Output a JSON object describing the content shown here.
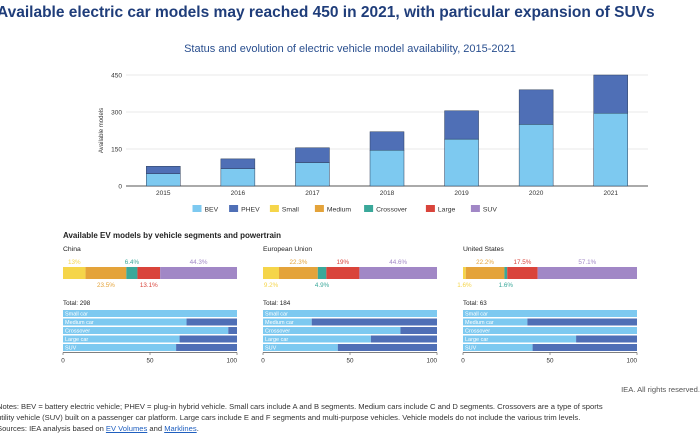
{
  "headline": "Available electric car models may reached 450 in 2021, with particular expansion of SUVs",
  "chart_data": [
    {
      "type": "bar",
      "stacked": true,
      "title": "Status and evolution of electric vehicle model availability, 2015-2021",
      "ylabel": "Available models",
      "ylim": [
        0,
        450
      ],
      "yticks": [
        0,
        150,
        300,
        450
      ],
      "categories": [
        "2015",
        "2016",
        "2017",
        "2018",
        "2019",
        "2020",
        "2021"
      ],
      "series": [
        {
          "name": "BEV",
          "color": "#7dc9f0",
          "values": [
            50,
            70,
            95,
            145,
            190,
            250,
            295
          ]
        },
        {
          "name": "PHEV",
          "color": "#4f6fb6",
          "values": [
            30,
            40,
            60,
            75,
            115,
            140,
            155
          ]
        }
      ],
      "legend": {
        "position": "bottom",
        "items": [
          {
            "name": "BEV",
            "color": "#7dc9f0"
          },
          {
            "name": "PHEV",
            "color": "#4f6fb6"
          },
          {
            "name": "Small",
            "color": "#f5d54a"
          },
          {
            "name": "Medium",
            "color": "#e4a33a"
          },
          {
            "name": "Crossover",
            "color": "#3aa89a"
          },
          {
            "name": "Large",
            "color": "#d9443b"
          },
          {
            "name": "SUV",
            "color": "#a187c6"
          }
        ]
      }
    },
    {
      "type": "bar",
      "title": "Available EV models by vehicle segments and powertrain",
      "segment_colors": [
        "#f5d54a",
        "#e4a33a",
        "#3aa89a",
        "#d9443b",
        "#a187c6"
      ],
      "powertrain_colors": [
        "#7dc9f0",
        "#4f6fb6"
      ],
      "xlim": [
        0,
        100
      ],
      "xticks": [
        0,
        50,
        100
      ],
      "regions": [
        {
          "name": "China",
          "segments": [
            13,
            23.5,
            6.4,
            13.1,
            44.3
          ],
          "top_labels": [
            {
              "text": "13%",
              "segment": 0
            },
            {
              "text": "6.4%",
              "segment": 2
            },
            {
              "text": "44.3%",
              "segment": 4
            }
          ],
          "bottom_labels": [
            {
              "text": "23.5%",
              "segment": 1
            },
            {
              "text": "13.1%",
              "segment": 3
            }
          ],
          "total_label": "Total: 298",
          "bars": [
            {
              "label": "Small car",
              "bev": 100
            },
            {
              "label": "Medium car",
              "bev": 71
            },
            {
              "label": "Crossover",
              "bev": 95
            },
            {
              "label": "Large car",
              "bev": 67
            },
            {
              "label": "SUV",
              "bev": 65
            }
          ]
        },
        {
          "name": "European Union",
          "segments": [
            9.2,
            22.3,
            4.9,
            19,
            44.6
          ],
          "top_labels": [
            {
              "text": "22.3%",
              "segment": 1
            },
            {
              "text": "19%",
              "segment": 3
            },
            {
              "text": "44.6%",
              "segment": 4
            }
          ],
          "bottom_labels": [
            {
              "text": "9.2%",
              "segment": 0
            },
            {
              "text": "4.9%",
              "segment": 2
            }
          ],
          "total_label": "Total: 184",
          "bars": [
            {
              "label": "Small car",
              "bev": 100
            },
            {
              "label": "Medium car",
              "bev": 28
            },
            {
              "label": "Crossover",
              "bev": 79
            },
            {
              "label": "Large car",
              "bev": 62
            },
            {
              "label": "SUV",
              "bev": 43
            }
          ]
        },
        {
          "name": "United States",
          "segments": [
            1.6,
            22.2,
            1.6,
            17.5,
            57.1
          ],
          "top_labels": [
            {
              "text": "22.2%",
              "segment": 1
            },
            {
              "text": "17.5%",
              "segment": 3
            },
            {
              "text": "57.1%",
              "segment": 4
            }
          ],
          "bottom_labels": [
            {
              "text": "1.6%",
              "segment": 0
            },
            {
              "text": "1.6%",
              "segment": 2
            }
          ],
          "total_label": "Total: 63",
          "bars": [
            {
              "label": "Small car",
              "bev": 100
            },
            {
              "label": "Medium car",
              "bev": 37
            },
            {
              "label": "Crossover",
              "bev": 100
            },
            {
              "label": "Large car",
              "bev": 65
            },
            {
              "label": "SUV",
              "bev": 40
            }
          ]
        }
      ]
    }
  ],
  "credit": "IEA. All rights reserved.",
  "notes": {
    "line1": "Notes: BEV = battery electric vehicle; PHEV = plug-in hybrid vehicle. Small cars include A and B segments. Medium cars include C and D segments. Crossovers are a type of sports",
    "line2": "utility vehicle (SUV) built on a passenger car platform. Large cars include E and F segments and multi-purpose vehicles. Vehicle models do not include the various trim levels.",
    "sources_prefix": "Sources: IEA analysis based on ",
    "link1": "EV Volumes",
    "connector": " and ",
    "link2": "Marklines",
    "suffix": "."
  }
}
